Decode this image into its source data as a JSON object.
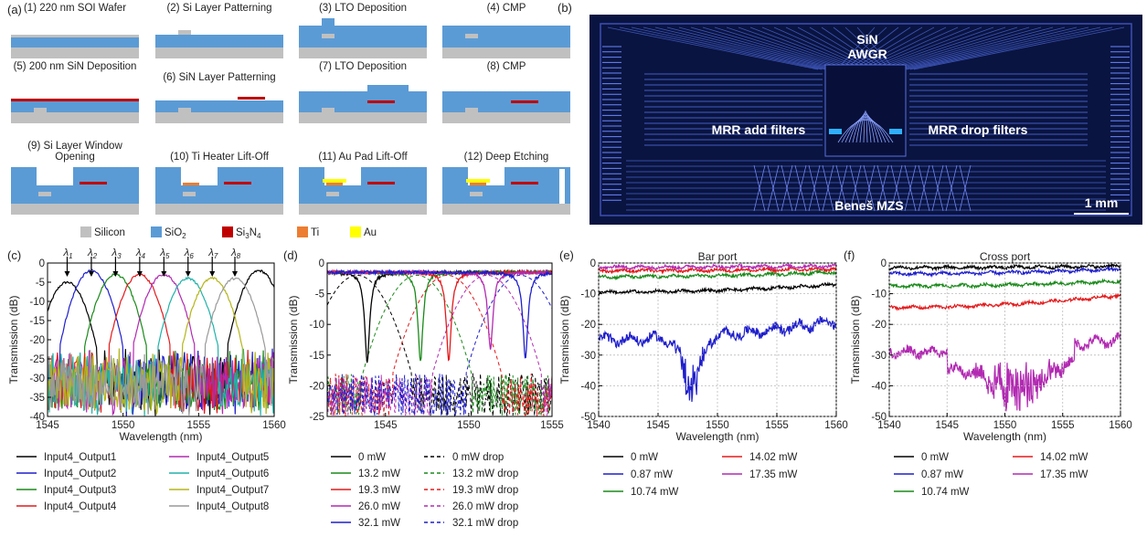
{
  "panel_labels": {
    "a": "(a)",
    "b": "(b)",
    "c": "(c)",
    "d": "(d)",
    "e": "(e)",
    "f": "(f)"
  },
  "fab_steps": [
    "(1) 220 nm SOI Wafer",
    "(2) Si Layer Patterning",
    "(3) LTO Deposition",
    "(4) CMP",
    "(5) 200 nm SiN Deposition",
    "(6) SiN Layer Patterning",
    "(7) LTO Deposition",
    "(8) CMP",
    "(9) Si Layer Window",
    "Opening",
    "(10) Ti Heater Lift-Off",
    "(11) Au Pad Lift-Off",
    "(12) Deep Etching"
  ],
  "materials": [
    {
      "label": "Silicon",
      "color": "#c0c0c0"
    },
    {
      "label": "SiO",
      "sub": "2",
      "color": "#5b9bd5"
    },
    {
      "label": "Si",
      "sub": "3",
      "label2": "N",
      "sub2": "4",
      "color": "#c00000"
    },
    {
      "label": "Ti",
      "color": "#ed7d31"
    },
    {
      "label": "Au",
      "color": "#ffff00"
    }
  ],
  "chip": {
    "awgr": "SiN",
    "awgr2": "AWGR",
    "add": "MRR add filters",
    "drop": "MRR drop filters",
    "mzs": "Beneš MZS",
    "scale": "1 mm"
  },
  "colors": {
    "substrate": "#c0c0c0",
    "oxide": "#5b9bd5",
    "sin": "#c00000",
    "ti": "#ed7d31",
    "au": "#ffff00",
    "chip_bg": "#0a1440"
  },
  "chart_data": [
    {
      "id": "c",
      "type": "line",
      "xlabel": "Wavelength (nm)",
      "ylabel": "Transmission (dB)",
      "xlim": [
        1545,
        1560
      ],
      "ylim": [
        -40,
        0
      ],
      "xticks": [
        "1545",
        "1550",
        "1555",
        "1560"
      ],
      "yticks": [
        "0",
        "-5",
        "-10",
        "-15",
        "-20",
        "-25",
        "-30",
        "-35",
        "-40"
      ],
      "channel_labels": [
        "λ1",
        "λ2",
        "λ3",
        "λ4",
        "λ5",
        "λ6",
        "λ7",
        "λ8"
      ],
      "channel_wavelengths": [
        1546.3,
        1547.9,
        1549.5,
        1551.1,
        1552.7,
        1554.3,
        1555.9,
        1557.4
      ],
      "series": [
        {
          "name": "Input4_Output1",
          "color": "#000000",
          "peak": 1546.3,
          "peak_db": -5
        },
        {
          "name": "Input4_Output2",
          "color": "#1f1fcc",
          "peak": 1547.9,
          "peak_db": -2
        },
        {
          "name": "Input4_Output3",
          "color": "#1a8a1a",
          "peak": 1549.5,
          "peak_db": -3
        },
        {
          "name": "Input4_Output4",
          "color": "#e31a1c",
          "peak": 1551.1,
          "peak_db": -3
        },
        {
          "name": "Input4_Output5",
          "color": "#b22ab2",
          "peak": 1552.7,
          "peak_db": -3
        },
        {
          "name": "Input4_Output6",
          "color": "#20b2aa",
          "peak": 1554.3,
          "peak_db": -4
        },
        {
          "name": "Input4_Output7",
          "color": "#b5b51a",
          "peak": 1555.9,
          "peak_db": -4
        },
        {
          "name": "Input4_Output8",
          "color": "#999999",
          "peak": 1557.4,
          "peak_db": -4
        }
      ],
      "extra_peaks": [
        {
          "series": 0,
          "peak": 1559.0,
          "peak_db": -2
        }
      ],
      "grid": false
    },
    {
      "id": "d",
      "type": "line",
      "xlabel": "",
      "ylabel": "Transmission (dB)",
      "xlim": [
        1541.5,
        1555
      ],
      "ylim": [
        -25,
        0
      ],
      "xticks": [
        "1545",
        "1550",
        "1555"
      ],
      "yticks": [
        "0",
        "-5",
        "-10",
        "-15",
        "-20",
        "-25"
      ],
      "series": [
        {
          "name": "0 mW",
          "color": "#000000",
          "dip": 1543.9,
          "dip_db": -14.5
        },
        {
          "name": "13.2 mW",
          "color": "#1a8a1a",
          "dip": 1547.1,
          "dip_db": -14.5
        },
        {
          "name": "19.3 mW",
          "color": "#e31a1c",
          "dip": 1548.8,
          "dip_db": -14.5
        },
        {
          "name": "26.0 mW",
          "color": "#b22ab2",
          "dip": 1551.3,
          "dip_db": -12.5
        },
        {
          "name": "32.1 mW",
          "color": "#1f1fcc",
          "dip": 1553.4,
          "dip_db": -14.0
        }
      ],
      "drop_series": [
        {
          "name": "0 mW drop",
          "color": "#000000",
          "peak": 1543.3
        },
        {
          "name": "13.2 mW drop",
          "color": "#1a8a1a",
          "peak": 1546.9
        },
        {
          "name": "19.3 mW drop",
          "color": "#e31a1c",
          "peak": 1548.7
        },
        {
          "name": "26.0 mW drop",
          "color": "#b22ab2",
          "peak": 1551.1
        },
        {
          "name": "32.1 mW drop",
          "color": "#1f1fcc",
          "peak": 1553.1
        }
      ],
      "grid": false
    },
    {
      "id": "e",
      "type": "line",
      "title": "Bar port",
      "xlabel": "Wavelength (nm)",
      "ylabel": "Transmission (dB)",
      "xlim": [
        1540,
        1560
      ],
      "ylim": [
        -50,
        0
      ],
      "xticks": [
        "1540",
        "1545",
        "1550",
        "1555",
        "1560"
      ],
      "yticks": [
        "0",
        "-10",
        "-20",
        "-30",
        "-40",
        "-50"
      ],
      "series": [
        {
          "name": "0 mW",
          "color": "#000000",
          "level": -9.5,
          "end": -7
        },
        {
          "name": "0.87 mW",
          "color": "#1f1fcc",
          "level": -25,
          "end": -19
        },
        {
          "name": "10.74 mW",
          "color": "#1a8a1a",
          "level": -4.5,
          "end": -3
        },
        {
          "name": "14.02 mW",
          "color": "#e31a1c",
          "level": -2.5,
          "end": -2
        },
        {
          "name": "17.35 mW",
          "color": "#b22ab2",
          "level": -1.3,
          "end": -1
        }
      ],
      "grid": true
    },
    {
      "id": "f",
      "type": "line",
      "title": "Cross port",
      "xlabel": "Wavelength (nm)",
      "ylabel": "Transmission (dB)",
      "xlim": [
        1540,
        1560
      ],
      "ylim": [
        -50,
        0
      ],
      "xticks": [
        "1540",
        "1545",
        "1550",
        "1555",
        "1560"
      ],
      "yticks": [
        "0",
        "-10",
        "-20",
        "-30",
        "-40",
        "-50"
      ],
      "series": [
        {
          "name": "0 mW",
          "color": "#000000",
          "level": -1.5,
          "end": -1
        },
        {
          "name": "0.87 mW",
          "color": "#1f1fcc",
          "level": -3.5,
          "end": -2
        },
        {
          "name": "10.74 mW",
          "color": "#1a8a1a",
          "level": -7.5,
          "end": -6
        },
        {
          "name": "14.02 mW",
          "color": "#e31a1c",
          "level": -14.5,
          "end": -10.5
        },
        {
          "name": "17.35 mW",
          "color": "#b22ab2",
          "level": -29,
          "end": -25
        }
      ],
      "grid": true
    }
  ]
}
